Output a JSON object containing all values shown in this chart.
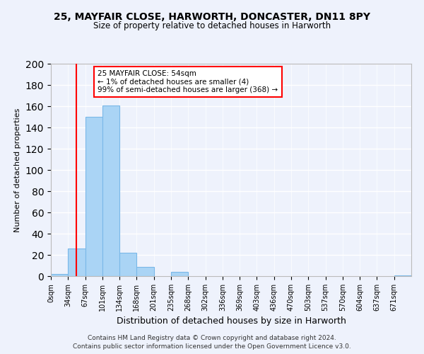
{
  "title1": "25, MAYFAIR CLOSE, HARWORTH, DONCASTER, DN11 8PY",
  "title2": "Size of property relative to detached houses in Harworth",
  "xlabel": "Distribution of detached houses by size in Harworth",
  "ylabel": "Number of detached properties",
  "bin_labels": [
    "0sqm",
    "34sqm",
    "67sqm",
    "101sqm",
    "134sqm",
    "168sqm",
    "201sqm",
    "235sqm",
    "268sqm",
    "302sqm",
    "336sqm",
    "369sqm",
    "403sqm",
    "436sqm",
    "470sqm",
    "503sqm",
    "537sqm",
    "570sqm",
    "604sqm",
    "637sqm",
    "671sqm"
  ],
  "bar_values": [
    2,
    26,
    150,
    161,
    22,
    9,
    0,
    4,
    0,
    0,
    0,
    0,
    0,
    0,
    0,
    0,
    0,
    0,
    0,
    0,
    1
  ],
  "bar_color": "#aad4f5",
  "bar_edge_color": "#7ab8e8",
  "red_line_x": 1.5,
  "annotation_line1": "25 MAYFAIR CLOSE: 54sqm",
  "annotation_line2": "← 1% of detached houses are smaller (4)",
  "annotation_line3": "99% of semi-detached houses are larger (368) →",
  "ylim": [
    0,
    200
  ],
  "yticks": [
    0,
    20,
    40,
    60,
    80,
    100,
    120,
    140,
    160,
    180,
    200
  ],
  "footnote1": "Contains HM Land Registry data © Crown copyright and database right 2024.",
  "footnote2": "Contains public sector information licensed under the Open Government Licence v3.0.",
  "bg_color": "#eef2fc"
}
